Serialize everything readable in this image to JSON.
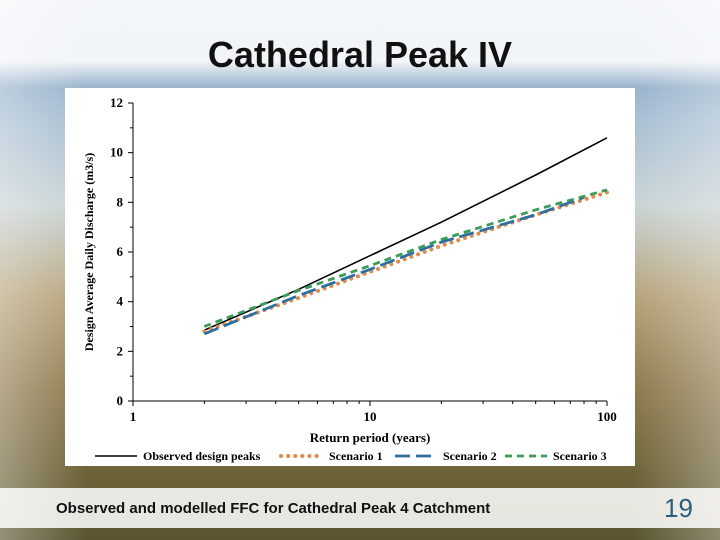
{
  "slide": {
    "title": "Cathedral Peak IV",
    "caption": "Observed and modelled FFC for Cathedral Peak 4 Catchment",
    "page_number": "19"
  },
  "chart_data": {
    "type": "line",
    "title": "",
    "xlabel": "Return period (years)",
    "ylabel": "Design Average Daily Discharge (m3/s)",
    "xscale": "log",
    "xlim": [
      1,
      100
    ],
    "ylim": [
      0,
      12
    ],
    "xticks": [
      1,
      10,
      100
    ],
    "xtick_labels": [
      "1",
      "10",
      "100"
    ],
    "yticks": [
      0,
      2,
      4,
      6,
      8,
      10,
      12
    ],
    "ytick_labels": [
      "0",
      "2",
      "4",
      "6",
      "8",
      "10",
      "12"
    ],
    "grid": false,
    "legend_position": "bottom",
    "series": [
      {
        "name": "Observed design peaks",
        "color": "#000000",
        "style": "solid",
        "x": [
          2,
          5,
          10,
          20,
          50,
          100
        ],
        "y": [
          2.85,
          4.5,
          5.85,
          7.2,
          9.1,
          10.6
        ]
      },
      {
        "name": "Scenario 1",
        "color": "#e08a4e",
        "style": "dotted",
        "x": [
          2,
          5,
          10,
          20,
          50,
          100
        ],
        "y": [
          2.8,
          4.15,
          5.2,
          6.25,
          7.5,
          8.4
        ]
      },
      {
        "name": "Scenario 2",
        "color": "#2d6f9e",
        "style": "longdash",
        "x": [
          2,
          5,
          10,
          20,
          50,
          80
        ],
        "y": [
          2.7,
          4.25,
          5.3,
          6.4,
          7.5,
          8.2
        ]
      },
      {
        "name": "Scenario 3",
        "color": "#3a9b5a",
        "style": "dashed",
        "x": [
          2,
          5,
          10,
          20,
          50,
          100
        ],
        "y": [
          3.0,
          4.45,
          5.45,
          6.5,
          7.7,
          8.5
        ]
      }
    ]
  }
}
